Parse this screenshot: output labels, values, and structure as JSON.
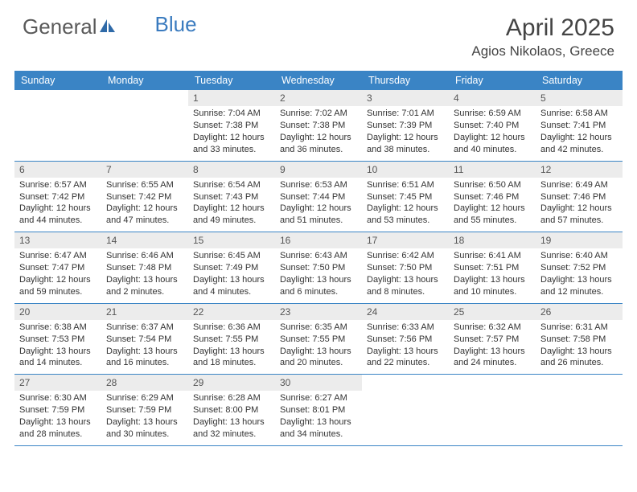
{
  "header": {
    "logo_text_1": "General",
    "logo_text_2": "Blue",
    "month_title": "April 2025",
    "location": "Agios Nikolaos, Greece"
  },
  "colors": {
    "header_bar": "#3a84c5",
    "day_num_bg": "#ececec",
    "logo_gray": "#5a5a5a",
    "logo_blue": "#3a7bbf",
    "text": "#333333",
    "border": "#3a84c5"
  },
  "day_headers": [
    "Sunday",
    "Monday",
    "Tuesday",
    "Wednesday",
    "Thursday",
    "Friday",
    "Saturday"
  ],
  "weeks": [
    [
      {
        "empty": true
      },
      {
        "empty": true
      },
      {
        "day": "1",
        "sunrise": "Sunrise: 7:04 AM",
        "sunset": "Sunset: 7:38 PM",
        "daylight1": "Daylight: 12 hours",
        "daylight2": "and 33 minutes."
      },
      {
        "day": "2",
        "sunrise": "Sunrise: 7:02 AM",
        "sunset": "Sunset: 7:38 PM",
        "daylight1": "Daylight: 12 hours",
        "daylight2": "and 36 minutes."
      },
      {
        "day": "3",
        "sunrise": "Sunrise: 7:01 AM",
        "sunset": "Sunset: 7:39 PM",
        "daylight1": "Daylight: 12 hours",
        "daylight2": "and 38 minutes."
      },
      {
        "day": "4",
        "sunrise": "Sunrise: 6:59 AM",
        "sunset": "Sunset: 7:40 PM",
        "daylight1": "Daylight: 12 hours",
        "daylight2": "and 40 minutes."
      },
      {
        "day": "5",
        "sunrise": "Sunrise: 6:58 AM",
        "sunset": "Sunset: 7:41 PM",
        "daylight1": "Daylight: 12 hours",
        "daylight2": "and 42 minutes."
      }
    ],
    [
      {
        "day": "6",
        "sunrise": "Sunrise: 6:57 AM",
        "sunset": "Sunset: 7:42 PM",
        "daylight1": "Daylight: 12 hours",
        "daylight2": "and 44 minutes."
      },
      {
        "day": "7",
        "sunrise": "Sunrise: 6:55 AM",
        "sunset": "Sunset: 7:42 PM",
        "daylight1": "Daylight: 12 hours",
        "daylight2": "and 47 minutes."
      },
      {
        "day": "8",
        "sunrise": "Sunrise: 6:54 AM",
        "sunset": "Sunset: 7:43 PM",
        "daylight1": "Daylight: 12 hours",
        "daylight2": "and 49 minutes."
      },
      {
        "day": "9",
        "sunrise": "Sunrise: 6:53 AM",
        "sunset": "Sunset: 7:44 PM",
        "daylight1": "Daylight: 12 hours",
        "daylight2": "and 51 minutes."
      },
      {
        "day": "10",
        "sunrise": "Sunrise: 6:51 AM",
        "sunset": "Sunset: 7:45 PM",
        "daylight1": "Daylight: 12 hours",
        "daylight2": "and 53 minutes."
      },
      {
        "day": "11",
        "sunrise": "Sunrise: 6:50 AM",
        "sunset": "Sunset: 7:46 PM",
        "daylight1": "Daylight: 12 hours",
        "daylight2": "and 55 minutes."
      },
      {
        "day": "12",
        "sunrise": "Sunrise: 6:49 AM",
        "sunset": "Sunset: 7:46 PM",
        "daylight1": "Daylight: 12 hours",
        "daylight2": "and 57 minutes."
      }
    ],
    [
      {
        "day": "13",
        "sunrise": "Sunrise: 6:47 AM",
        "sunset": "Sunset: 7:47 PM",
        "daylight1": "Daylight: 12 hours",
        "daylight2": "and 59 minutes."
      },
      {
        "day": "14",
        "sunrise": "Sunrise: 6:46 AM",
        "sunset": "Sunset: 7:48 PM",
        "daylight1": "Daylight: 13 hours",
        "daylight2": "and 2 minutes."
      },
      {
        "day": "15",
        "sunrise": "Sunrise: 6:45 AM",
        "sunset": "Sunset: 7:49 PM",
        "daylight1": "Daylight: 13 hours",
        "daylight2": "and 4 minutes."
      },
      {
        "day": "16",
        "sunrise": "Sunrise: 6:43 AM",
        "sunset": "Sunset: 7:50 PM",
        "daylight1": "Daylight: 13 hours",
        "daylight2": "and 6 minutes."
      },
      {
        "day": "17",
        "sunrise": "Sunrise: 6:42 AM",
        "sunset": "Sunset: 7:50 PM",
        "daylight1": "Daylight: 13 hours",
        "daylight2": "and 8 minutes."
      },
      {
        "day": "18",
        "sunrise": "Sunrise: 6:41 AM",
        "sunset": "Sunset: 7:51 PM",
        "daylight1": "Daylight: 13 hours",
        "daylight2": "and 10 minutes."
      },
      {
        "day": "19",
        "sunrise": "Sunrise: 6:40 AM",
        "sunset": "Sunset: 7:52 PM",
        "daylight1": "Daylight: 13 hours",
        "daylight2": "and 12 minutes."
      }
    ],
    [
      {
        "day": "20",
        "sunrise": "Sunrise: 6:38 AM",
        "sunset": "Sunset: 7:53 PM",
        "daylight1": "Daylight: 13 hours",
        "daylight2": "and 14 minutes."
      },
      {
        "day": "21",
        "sunrise": "Sunrise: 6:37 AM",
        "sunset": "Sunset: 7:54 PM",
        "daylight1": "Daylight: 13 hours",
        "daylight2": "and 16 minutes."
      },
      {
        "day": "22",
        "sunrise": "Sunrise: 6:36 AM",
        "sunset": "Sunset: 7:55 PM",
        "daylight1": "Daylight: 13 hours",
        "daylight2": "and 18 minutes."
      },
      {
        "day": "23",
        "sunrise": "Sunrise: 6:35 AM",
        "sunset": "Sunset: 7:55 PM",
        "daylight1": "Daylight: 13 hours",
        "daylight2": "and 20 minutes."
      },
      {
        "day": "24",
        "sunrise": "Sunrise: 6:33 AM",
        "sunset": "Sunset: 7:56 PM",
        "daylight1": "Daylight: 13 hours",
        "daylight2": "and 22 minutes."
      },
      {
        "day": "25",
        "sunrise": "Sunrise: 6:32 AM",
        "sunset": "Sunset: 7:57 PM",
        "daylight1": "Daylight: 13 hours",
        "daylight2": "and 24 minutes."
      },
      {
        "day": "26",
        "sunrise": "Sunrise: 6:31 AM",
        "sunset": "Sunset: 7:58 PM",
        "daylight1": "Daylight: 13 hours",
        "daylight2": "and 26 minutes."
      }
    ],
    [
      {
        "day": "27",
        "sunrise": "Sunrise: 6:30 AM",
        "sunset": "Sunset: 7:59 PM",
        "daylight1": "Daylight: 13 hours",
        "daylight2": "and 28 minutes."
      },
      {
        "day": "28",
        "sunrise": "Sunrise: 6:29 AM",
        "sunset": "Sunset: 7:59 PM",
        "daylight1": "Daylight: 13 hours",
        "daylight2": "and 30 minutes."
      },
      {
        "day": "29",
        "sunrise": "Sunrise: 6:28 AM",
        "sunset": "Sunset: 8:00 PM",
        "daylight1": "Daylight: 13 hours",
        "daylight2": "and 32 minutes."
      },
      {
        "day": "30",
        "sunrise": "Sunrise: 6:27 AM",
        "sunset": "Sunset: 8:01 PM",
        "daylight1": "Daylight: 13 hours",
        "daylight2": "and 34 minutes."
      },
      {
        "empty": true
      },
      {
        "empty": true
      },
      {
        "empty": true
      }
    ]
  ]
}
